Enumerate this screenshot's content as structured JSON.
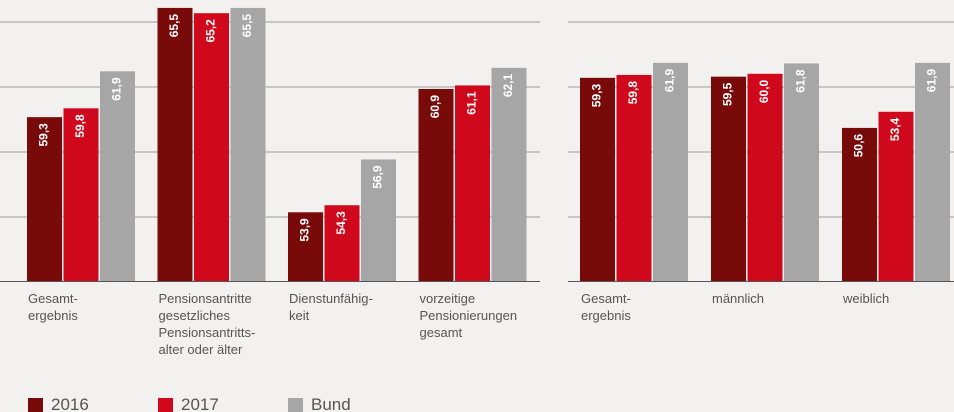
{
  "chart_data": [
    {
      "type": "bar",
      "categories": [
        "Gesamt-\nergebnis",
        "Pensionsantritte\ngesetzliches\nPensionsantritts-\nalter oder älter",
        "Dienstunfähig-\nkeit",
        "vorzeitige\nPensionierungen\ngesamt"
      ],
      "series": [
        {
          "name": "2016",
          "color": "#780a0a",
          "values": [
            59.3,
            65.5,
            53.9,
            60.9
          ],
          "value_labels": [
            "59,3",
            "65,5",
            "53,9",
            "60,9"
          ]
        },
        {
          "name": "2017",
          "color": "#d0081c",
          "values": [
            59.8,
            65.2,
            54.3,
            61.1
          ],
          "value_labels": [
            "59,8",
            "65,2",
            "54,3",
            "61,1"
          ]
        },
        {
          "name": "Bund",
          "color": "#a6a6a6",
          "values": [
            61.9,
            65.5,
            56.9,
            62.1
          ],
          "value_labels": [
            "61,9",
            "65,5",
            "56,9",
            "62,1"
          ]
        }
      ],
      "ylim": [
        50,
        64.7
      ]
    },
    {
      "type": "bar",
      "categories": [
        "Gesamt-\nergebnis",
        "männlich",
        "weiblich"
      ],
      "series": [
        {
          "name": "2016",
          "color": "#780a0a",
          "values": [
            59.3,
            59.5,
            50.6
          ],
          "value_labels": [
            "59,3",
            "59,5",
            "50,6"
          ]
        },
        {
          "name": "2017",
          "color": "#d0081c",
          "values": [
            59.8,
            60.0,
            53.4
          ],
          "value_labels": [
            "59,8",
            "60,0",
            "53,4"
          ]
        },
        {
          "name": "Bund",
          "color": "#a6a6a6",
          "values": [
            61.9,
            61.8,
            61.9
          ],
          "value_labels": [
            "61,9",
            "61,8",
            "61,9"
          ]
        }
      ],
      "ylim": [
        24,
        69
      ]
    }
  ]
}
